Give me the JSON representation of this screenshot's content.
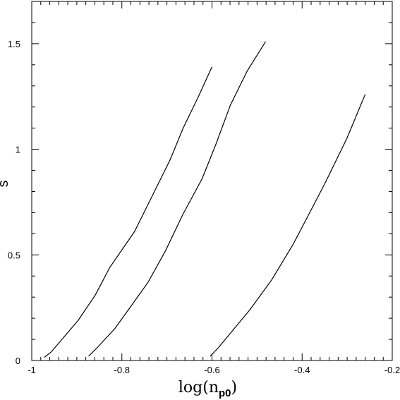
{
  "chart_data": {
    "type": "line",
    "title": "",
    "xlabel": "log(n",
    "xlabel_sub": "p0",
    "xlabel_close": ")",
    "ylabel": "s",
    "xlim": [
      -1,
      -0.2
    ],
    "ylim": [
      0,
      1.7
    ],
    "xticks": [
      -1,
      -0.8,
      -0.6,
      -0.4,
      -0.2
    ],
    "xtick_labels": [
      "-1",
      "-0.8",
      "-0.6",
      "-0.4",
      "-0.2"
    ],
    "xminor_step": 0.02,
    "yticks": [
      0,
      0.5,
      1,
      1.5
    ],
    "ytick_labels": [
      "0",
      "0.5",
      "1",
      "1.5"
    ],
    "yminor_step": 0.1,
    "grid": false,
    "series": [
      {
        "x": [
          -0.972,
          -0.957,
          -0.897,
          -0.859,
          -0.827,
          -0.772,
          -0.737,
          -0.693,
          -0.664,
          -0.63,
          -0.6
        ],
        "y": [
          0.015,
          0.04,
          0.19,
          0.31,
          0.44,
          0.61,
          0.76,
          0.95,
          1.1,
          1.25,
          1.39
        ],
        "color": "#000000"
      },
      {
        "x": [
          -0.874,
          -0.855,
          -0.816,
          -0.782,
          -0.742,
          -0.703,
          -0.665,
          -0.622,
          -0.592,
          -0.559,
          -0.522,
          -0.481
        ],
        "y": [
          0.02,
          0.06,
          0.15,
          0.25,
          0.37,
          0.52,
          0.69,
          0.86,
          1.02,
          1.21,
          1.37,
          1.51
        ],
        "color": "#000000"
      },
      {
        "x": [
          -0.604,
          -0.586,
          -0.516,
          -0.468,
          -0.42,
          -0.388,
          -0.349,
          -0.301,
          -0.26
        ],
        "y": [
          0.02,
          0.06,
          0.24,
          0.38,
          0.55,
          0.68,
          0.84,
          1.05,
          1.26
        ],
        "color": "#000000"
      }
    ]
  }
}
